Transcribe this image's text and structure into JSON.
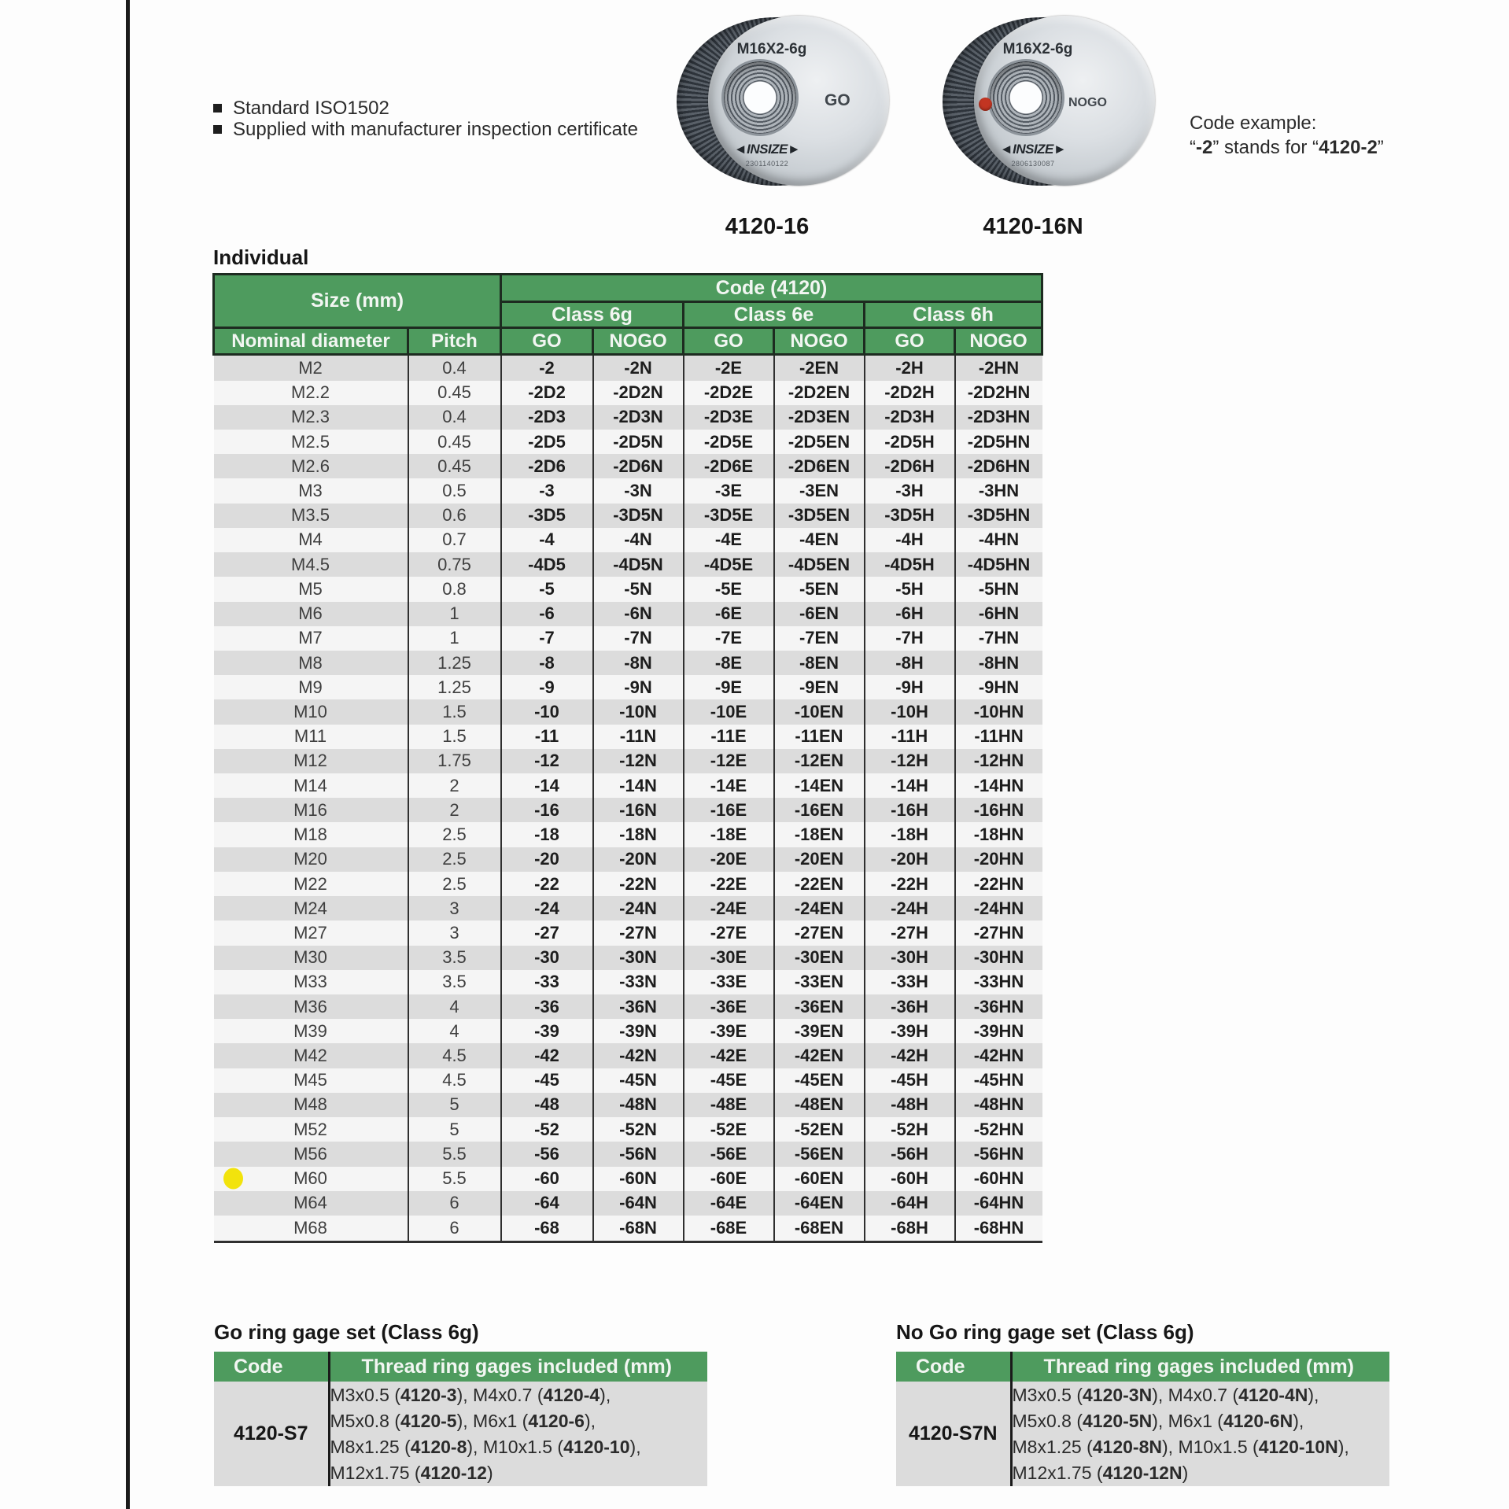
{
  "colors": {
    "header_green": "#4e9b5e",
    "header_border": "#1d2b20",
    "row_gray": "#dcdcdc",
    "row_light": "#f5f5f5",
    "table_border": "#2f2f2f",
    "highlight_yellow": "#f2e30c",
    "nogo_red": "#c23522",
    "page_line": "#1b1b1b"
  },
  "features": [
    "Standard ISO1502",
    "Supplied with manufacturer inspection certificate"
  ],
  "products": [
    {
      "code": "4120-16",
      "face_text": "M16X2-6g",
      "side_text": "GO",
      "brand_display": "◄INSIZE►",
      "serial": "2301140122",
      "nogo_dot": false
    },
    {
      "code": "4120-16N",
      "face_text": "M16X2-6g",
      "side_text": "NOGO",
      "brand_display": "◄INSIZE►",
      "serial": "2806130087",
      "nogo_dot": true
    }
  ],
  "code_example": {
    "title": "Code example:",
    "parts": [
      {
        "t": "“"
      },
      {
        "t": "-2",
        "b": 1
      },
      {
        "t": "” stands for “"
      },
      {
        "t": "4120-2",
        "b": 1
      },
      {
        "t": "”"
      }
    ]
  },
  "individual_table": {
    "title": "Individual",
    "header": {
      "size": "Size (mm)",
      "code": "Code (4120)",
      "class_6g": "Class 6g",
      "class_6e": "Class 6e",
      "class_6h": "Class 6h",
      "nominal": "Nominal diameter",
      "pitch": "Pitch",
      "go": "GO",
      "nogo": "NOGO"
    },
    "rows": [
      {
        "size": "M2",
        "pitch": "0.4",
        "codes": [
          "-2",
          "-2N",
          "-2E",
          "-2EN",
          "-2H",
          "-2HN"
        ]
      },
      {
        "size": "M2.2",
        "pitch": "0.45",
        "codes": [
          "-2D2",
          "-2D2N",
          "-2D2E",
          "-2D2EN",
          "-2D2H",
          "-2D2HN"
        ]
      },
      {
        "size": "M2.3",
        "pitch": "0.4",
        "codes": [
          "-2D3",
          "-2D3N",
          "-2D3E",
          "-2D3EN",
          "-2D3H",
          "-2D3HN"
        ]
      },
      {
        "size": "M2.5",
        "pitch": "0.45",
        "codes": [
          "-2D5",
          "-2D5N",
          "-2D5E",
          "-2D5EN",
          "-2D5H",
          "-2D5HN"
        ]
      },
      {
        "size": "M2.6",
        "pitch": "0.45",
        "codes": [
          "-2D6",
          "-2D6N",
          "-2D6E",
          "-2D6EN",
          "-2D6H",
          "-2D6HN"
        ]
      },
      {
        "size": "M3",
        "pitch": "0.5",
        "codes": [
          "-3",
          "-3N",
          "-3E",
          "-3EN",
          "-3H",
          "-3HN"
        ]
      },
      {
        "size": "M3.5",
        "pitch": "0.6",
        "codes": [
          "-3D5",
          "-3D5N",
          "-3D5E",
          "-3D5EN",
          "-3D5H",
          "-3D5HN"
        ]
      },
      {
        "size": "M4",
        "pitch": "0.7",
        "codes": [
          "-4",
          "-4N",
          "-4E",
          "-4EN",
          "-4H",
          "-4HN"
        ]
      },
      {
        "size": "M4.5",
        "pitch": "0.75",
        "codes": [
          "-4D5",
          "-4D5N",
          "-4D5E",
          "-4D5EN",
          "-4D5H",
          "-4D5HN"
        ]
      },
      {
        "size": "M5",
        "pitch": "0.8",
        "codes": [
          "-5",
          "-5N",
          "-5E",
          "-5EN",
          "-5H",
          "-5HN"
        ]
      },
      {
        "size": "M6",
        "pitch": "1",
        "codes": [
          "-6",
          "-6N",
          "-6E",
          "-6EN",
          "-6H",
          "-6HN"
        ]
      },
      {
        "size": "M7",
        "pitch": "1",
        "codes": [
          "-7",
          "-7N",
          "-7E",
          "-7EN",
          "-7H",
          "-7HN"
        ]
      },
      {
        "size": "M8",
        "pitch": "1.25",
        "codes": [
          "-8",
          "-8N",
          "-8E",
          "-8EN",
          "-8H",
          "-8HN"
        ]
      },
      {
        "size": "M9",
        "pitch": "1.25",
        "codes": [
          "-9",
          "-9N",
          "-9E",
          "-9EN",
          "-9H",
          "-9HN"
        ]
      },
      {
        "size": "M10",
        "pitch": "1.5",
        "codes": [
          "-10",
          "-10N",
          "-10E",
          "-10EN",
          "-10H",
          "-10HN"
        ]
      },
      {
        "size": "M11",
        "pitch": "1.5",
        "codes": [
          "-11",
          "-11N",
          "-11E",
          "-11EN",
          "-11H",
          "-11HN"
        ]
      },
      {
        "size": "M12",
        "pitch": "1.75",
        "codes": [
          "-12",
          "-12N",
          "-12E",
          "-12EN",
          "-12H",
          "-12HN"
        ]
      },
      {
        "size": "M14",
        "pitch": "2",
        "codes": [
          "-14",
          "-14N",
          "-14E",
          "-14EN",
          "-14H",
          "-14HN"
        ]
      },
      {
        "size": "M16",
        "pitch": "2",
        "codes": [
          "-16",
          "-16N",
          "-16E",
          "-16EN",
          "-16H",
          "-16HN"
        ]
      },
      {
        "size": "M18",
        "pitch": "2.5",
        "codes": [
          "-18",
          "-18N",
          "-18E",
          "-18EN",
          "-18H",
          "-18HN"
        ]
      },
      {
        "size": "M20",
        "pitch": "2.5",
        "codes": [
          "-20",
          "-20N",
          "-20E",
          "-20EN",
          "-20H",
          "-20HN"
        ]
      },
      {
        "size": "M22",
        "pitch": "2.5",
        "codes": [
          "-22",
          "-22N",
          "-22E",
          "-22EN",
          "-22H",
          "-22HN"
        ]
      },
      {
        "size": "M24",
        "pitch": "3",
        "codes": [
          "-24",
          "-24N",
          "-24E",
          "-24EN",
          "-24H",
          "-24HN"
        ]
      },
      {
        "size": "M27",
        "pitch": "3",
        "codes": [
          "-27",
          "-27N",
          "-27E",
          "-27EN",
          "-27H",
          "-27HN"
        ]
      },
      {
        "size": "M30",
        "pitch": "3.5",
        "codes": [
          "-30",
          "-30N",
          "-30E",
          "-30EN",
          "-30H",
          "-30HN"
        ]
      },
      {
        "size": "M33",
        "pitch": "3.5",
        "codes": [
          "-33",
          "-33N",
          "-33E",
          "-33EN",
          "-33H",
          "-33HN"
        ]
      },
      {
        "size": "M36",
        "pitch": "4",
        "codes": [
          "-36",
          "-36N",
          "-36E",
          "-36EN",
          "-36H",
          "-36HN"
        ]
      },
      {
        "size": "M39",
        "pitch": "4",
        "codes": [
          "-39",
          "-39N",
          "-39E",
          "-39EN",
          "-39H",
          "-39HN"
        ]
      },
      {
        "size": "M42",
        "pitch": "4.5",
        "codes": [
          "-42",
          "-42N",
          "-42E",
          "-42EN",
          "-42H",
          "-42HN"
        ]
      },
      {
        "size": "M45",
        "pitch": "4.5",
        "codes": [
          "-45",
          "-45N",
          "-45E",
          "-45EN",
          "-45H",
          "-45HN"
        ]
      },
      {
        "size": "M48",
        "pitch": "5",
        "codes": [
          "-48",
          "-48N",
          "-48E",
          "-48EN",
          "-48H",
          "-48HN"
        ]
      },
      {
        "size": "M52",
        "pitch": "5",
        "codes": [
          "-52",
          "-52N",
          "-52E",
          "-52EN",
          "-52H",
          "-52HN"
        ]
      },
      {
        "size": "M56",
        "pitch": "5.5",
        "codes": [
          "-56",
          "-56N",
          "-56E",
          "-56EN",
          "-56H",
          "-56HN"
        ]
      },
      {
        "size": "M60",
        "pitch": "5.5",
        "highlight": true,
        "codes": [
          "-60",
          "-60N",
          "-60E",
          "-60EN",
          "-60H",
          "-60HN"
        ]
      },
      {
        "size": "M64",
        "pitch": "6",
        "codes": [
          "-64",
          "-64N",
          "-64E",
          "-64EN",
          "-64H",
          "-64HN"
        ]
      },
      {
        "size": "M68",
        "pitch": "6",
        "codes": [
          "-68",
          "-68N",
          "-68E",
          "-68EN",
          "-68H",
          "-68HN"
        ]
      }
    ]
  },
  "go_set": {
    "title": "Go ring gage set (Class 6g)",
    "header": {
      "code": "Code",
      "included": "Thread ring gages included (mm)"
    },
    "code": "4120-S7",
    "included_lines": [
      [
        {
          "t": "M3x0.5 ("
        },
        {
          "t": "4120-3",
          "b": 1
        },
        {
          "t": "), M4x0.7 ("
        },
        {
          "t": "4120-4",
          "b": 1
        },
        {
          "t": "),"
        }
      ],
      [
        {
          "t": "M5x0.8 ("
        },
        {
          "t": "4120-5",
          "b": 1
        },
        {
          "t": "), M6x1 ("
        },
        {
          "t": "4120-6",
          "b": 1
        },
        {
          "t": "),"
        }
      ],
      [
        {
          "t": "M8x1.25 ("
        },
        {
          "t": "4120-8",
          "b": 1
        },
        {
          "t": "), M10x1.5 ("
        },
        {
          "t": "4120-10",
          "b": 1
        },
        {
          "t": "),"
        }
      ],
      [
        {
          "t": "M12x1.75 ("
        },
        {
          "t": "4120-12",
          "b": 1
        },
        {
          "t": ")"
        }
      ]
    ]
  },
  "nogo_set": {
    "title": "No Go ring gage set (Class 6g)",
    "header": {
      "code": "Code",
      "included": "Thread ring gages included (mm)"
    },
    "code": "4120-S7N",
    "included_lines": [
      [
        {
          "t": "M3x0.5 ("
        },
        {
          "t": "4120-3N",
          "b": 1
        },
        {
          "t": "), M4x0.7 ("
        },
        {
          "t": "4120-4N",
          "b": 1
        },
        {
          "t": "),"
        }
      ],
      [
        {
          "t": "M5x0.8 ("
        },
        {
          "t": "4120-5N",
          "b": 1
        },
        {
          "t": "), M6x1 ("
        },
        {
          "t": "4120-6N",
          "b": 1
        },
        {
          "t": "),"
        }
      ],
      [
        {
          "t": "M8x1.25 ("
        },
        {
          "t": "4120-8N",
          "b": 1
        },
        {
          "t": "), M10x1.5 ("
        },
        {
          "t": "4120-10N",
          "b": 1
        },
        {
          "t": "),"
        }
      ],
      [
        {
          "t": "M12x1.75 ("
        },
        {
          "t": "4120-12N",
          "b": 1
        },
        {
          "t": ")"
        }
      ]
    ]
  }
}
